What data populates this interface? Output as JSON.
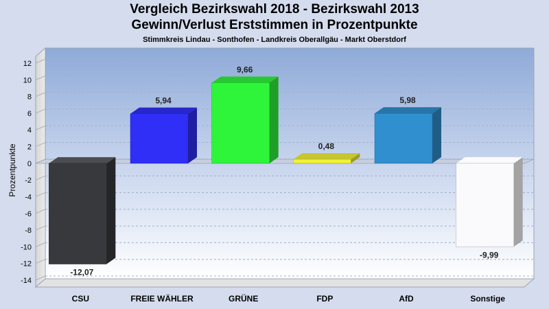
{
  "title": "Vergleich Bezirkswahl 2018 - Bezirkswahl 2013",
  "subtitle": "Gewinn/Verlust Erststimmen in Prozentpunkte",
  "subtitle2": "Stimmkreis Lindau - Sonthofen - Landkreis Oberallgäu - Markt Oberstdorf",
  "chart_data": {
    "type": "bar",
    "ylabel": "Prozentpunkte",
    "ylim": [
      -14,
      12
    ],
    "yticks": [
      12,
      10,
      8,
      6,
      4,
      2,
      0,
      -2,
      -4,
      -6,
      -8,
      -10,
      -12,
      -14
    ],
    "grid": true,
    "categories": [
      "CSU",
      "FREIE WÄHLER",
      "GRÜNE",
      "FDP",
      "AfD",
      "Sonstige"
    ],
    "values": [
      -12.07,
      5.94,
      9.66,
      0.48,
      5.98,
      -9.99
    ],
    "value_labels": [
      "-12,07",
      "5,94",
      "9,66",
      "0,48",
      "5,98",
      "-9,99"
    ],
    "colors": [
      "#37393c",
      "#2f2ff7",
      "#2ef53a",
      "#f2f23a",
      "#2f8fcf",
      "#fafafd"
    ]
  }
}
